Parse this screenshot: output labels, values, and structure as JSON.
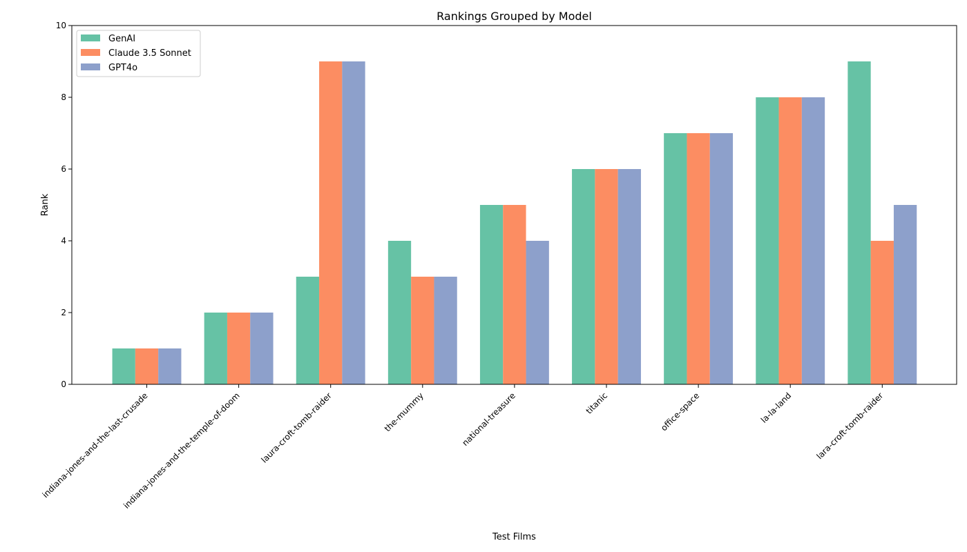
{
  "chart_data": {
    "type": "bar",
    "title": "Rankings Grouped by Model",
    "xlabel": "Test Films",
    "ylabel": "Rank",
    "ylim": [
      0,
      10
    ],
    "yticks": [
      "0",
      "2",
      "4",
      "6",
      "8",
      "10"
    ],
    "grid": false,
    "legend_position": "top-left",
    "categories": [
      "indiana-jones-and-the-last-crusade",
      "indiana-jones-and-the-temple-of-doom",
      "laura-croft-tomb-raider",
      "the-mummy",
      "national-treasure",
      "titanic",
      "office-space",
      "la-la-land",
      "lara-croft-tomb-raider"
    ],
    "series": [
      {
        "name": "GenAI",
        "color": "#66c2a5",
        "values": [
          1,
          2,
          3,
          4,
          5,
          6,
          7,
          8,
          9
        ]
      },
      {
        "name": "Claude 3.5 Sonnet",
        "color": "#fc8d62",
        "values": [
          1,
          2,
          9,
          3,
          5,
          6,
          7,
          8,
          4
        ]
      },
      {
        "name": "GPT4o",
        "color": "#8da0cb",
        "values": [
          1,
          2,
          9,
          3,
          4,
          6,
          7,
          8,
          5
        ]
      }
    ]
  }
}
